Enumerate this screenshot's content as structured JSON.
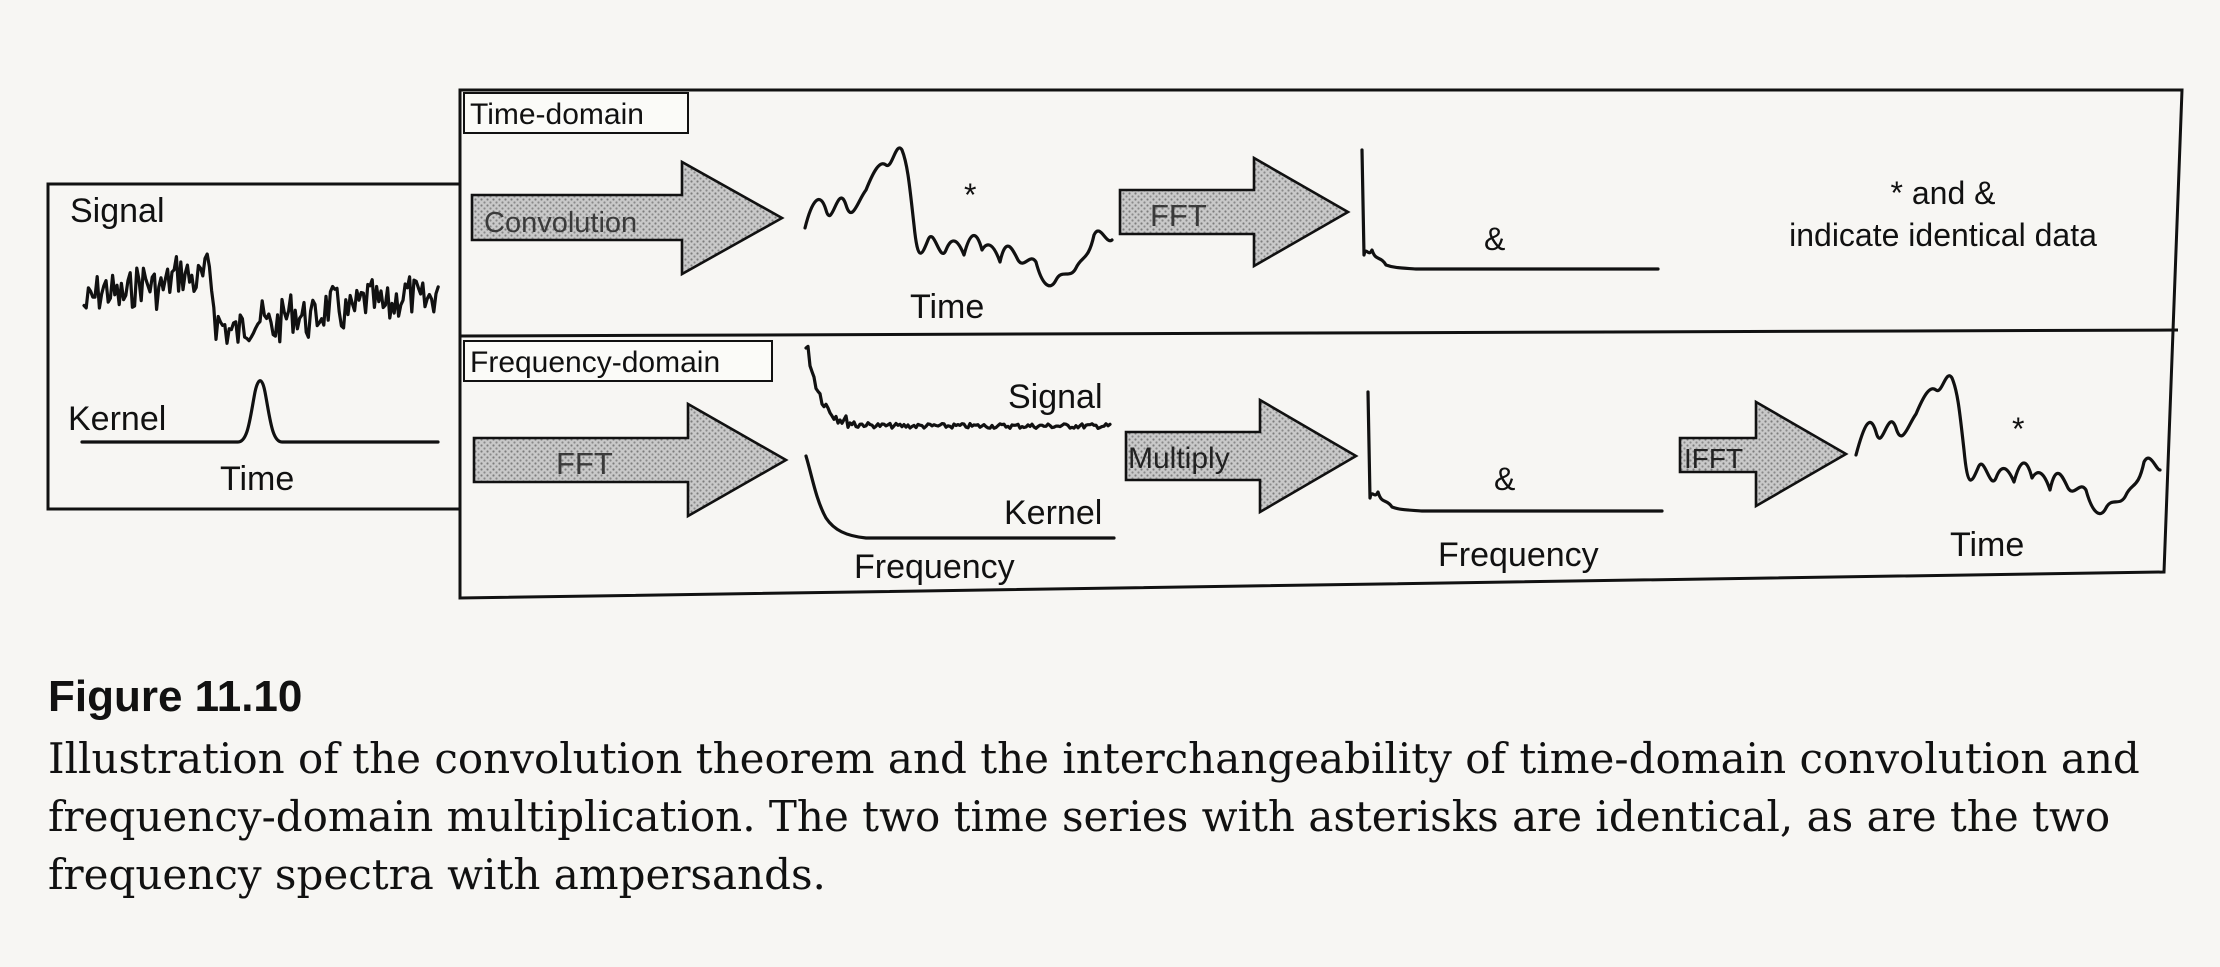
{
  "figure": {
    "number": "Figure 11.10",
    "caption": "Illustration of the convolution theorem and the interchangeability of time-domain convolution and frequency-domain multiplication. The two time series with asterisks are identical, as are the two frequency spectra with ampersands."
  },
  "left_panel": {
    "signal_label": "Signal",
    "kernel_label": "Kernel",
    "time_label": "Time"
  },
  "time_domain": {
    "tag": "Time-domain",
    "convolution_label": "Convolution",
    "asterisk": "*",
    "time_label": "Time",
    "fft_label": "FFT",
    "ampersand": "&",
    "note_line1": "* and &",
    "note_line2": "indicate identical data"
  },
  "frequency_domain": {
    "tag": "Frequency-domain",
    "fft_label": "FFT",
    "signal_label": "Signal",
    "kernel_label": "Kernel",
    "frequency_label": "Frequency",
    "multiply_label": "Multiply",
    "ampersand": "&",
    "frequency_label_2": "Frequency",
    "ifft_label": "IFFT",
    "asterisk": "*",
    "time_label": "Time"
  }
}
